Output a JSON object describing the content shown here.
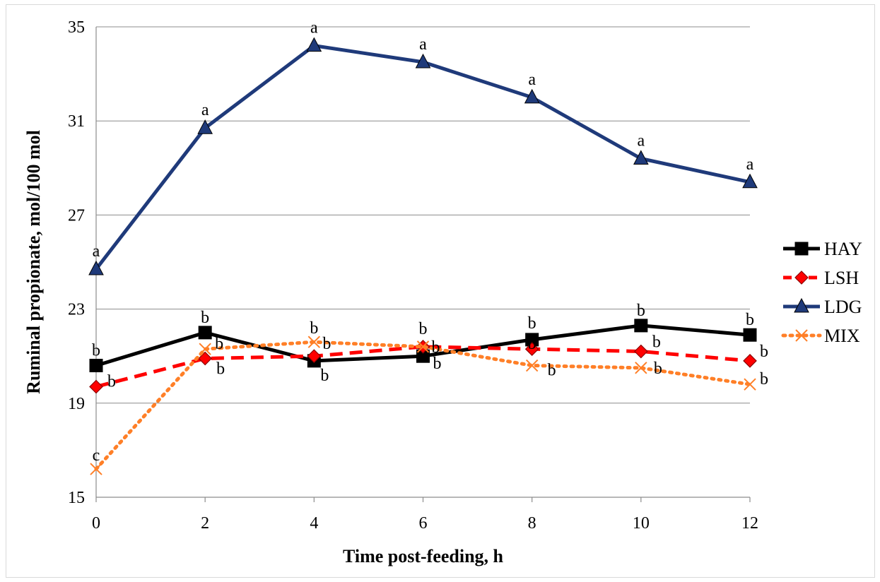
{
  "chart_data": {
    "type": "line",
    "title": "",
    "xlabel": "Time post-feeding, h",
    "ylabel": "Ruminal propionate, mol/100 mol",
    "x": [
      0,
      2,
      4,
      6,
      8,
      10,
      12
    ],
    "xticks": [
      "0",
      "2",
      "4",
      "6",
      "8",
      "10",
      "12"
    ],
    "yticks": [
      "15",
      "19",
      "23",
      "27",
      "31",
      "35"
    ],
    "xlim": [
      0,
      12
    ],
    "ylim": [
      15,
      35
    ],
    "grid": "horizontal",
    "legend_position": "right",
    "series": [
      {
        "name": "HAY",
        "color": "#000000",
        "marker": "square",
        "line": "solid",
        "values": [
          20.6,
          22.0,
          20.8,
          21.0,
          21.7,
          22.3,
          21.9
        ],
        "labels": [
          "b",
          "b",
          "b",
          "b",
          "b",
          "b",
          "b"
        ]
      },
      {
        "name": "LSH",
        "color": "#ff0000",
        "marker": "diamond",
        "line": "dashed",
        "values": [
          19.7,
          20.9,
          21.0,
          21.4,
          21.3,
          21.2,
          20.8
        ],
        "labels": [
          "b",
          "b",
          "b",
          "b",
          "b",
          "b",
          "b"
        ]
      },
      {
        "name": "LDG",
        "color": "#1f3a7a",
        "marker": "triangle",
        "line": "solid",
        "values": [
          24.7,
          30.7,
          34.2,
          33.5,
          32.0,
          29.4,
          28.4
        ],
        "labels": [
          "a",
          "a",
          "a",
          "a",
          "a",
          "a",
          "a"
        ]
      },
      {
        "name": "MIX",
        "color": "#ff7f27",
        "marker": "x",
        "line": "dotted",
        "values": [
          16.2,
          21.3,
          21.6,
          21.4,
          20.6,
          20.5,
          19.8
        ],
        "labels": [
          "c",
          "b",
          "b",
          "b",
          "b",
          "b",
          "b"
        ]
      }
    ]
  }
}
